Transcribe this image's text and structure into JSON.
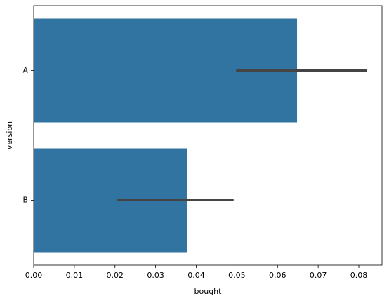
{
  "chart_data": {
    "type": "barh",
    "x_label": "bought",
    "y_label": "version",
    "categories": [
      "A",
      "B"
    ],
    "values": [
      0.0648,
      0.0378
    ],
    "ci": [
      [
        0.0498,
        0.0819
      ],
      [
        0.0205,
        0.0492
      ]
    ],
    "color": "#3274a1",
    "error_color": "#444444",
    "xlim": [
      0,
      0.0857
    ],
    "xticks": [
      {
        "value": 0,
        "label": "0.00"
      },
      {
        "value": 0.01,
        "label": "0.01"
      },
      {
        "value": 0.02,
        "label": "0.02"
      },
      {
        "value": 0.03,
        "label": "0.03"
      },
      {
        "value": 0.04,
        "label": "0.04"
      },
      {
        "value": 0.05,
        "label": "0.05"
      },
      {
        "value": 0.06,
        "label": "0.06"
      },
      {
        "value": 0.07,
        "label": "0.07"
      },
      {
        "value": 0.08,
        "label": "0.08"
      }
    ]
  }
}
